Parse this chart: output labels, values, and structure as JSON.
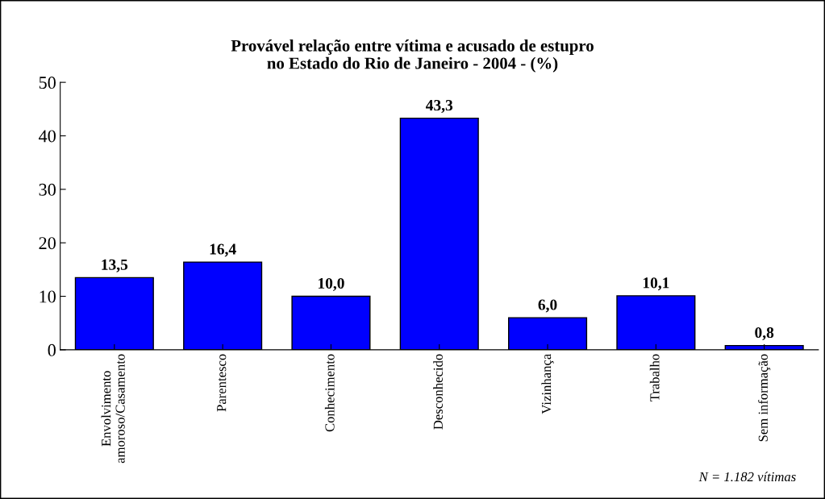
{
  "chart_data": {
    "type": "bar",
    "title": "Provável relação entre vítima e acusado de estupro\nno Estado do Rio de Janeiro - 2004 - (%)",
    "categories": [
      "Envolvimento\namoroso/Casamento",
      "Parentesco",
      "Conhecimento",
      "Desconhecido",
      "Vizinhança",
      "Trabalho",
      "Sem informação"
    ],
    "values": [
      13.5,
      16.4,
      10.0,
      43.3,
      6.0,
      10.1,
      0.8
    ],
    "value_labels": [
      "13,5",
      "16,4",
      "10,0",
      "43,3",
      "6,0",
      "10,1",
      "0,8"
    ],
    "color": "#0000ff",
    "ylim": [
      0,
      50
    ],
    "yticks": [
      0,
      10,
      20,
      30,
      40,
      50
    ],
    "grid": false,
    "legend": false,
    "annotations": [
      "N = 1.182 vítimas"
    ]
  }
}
